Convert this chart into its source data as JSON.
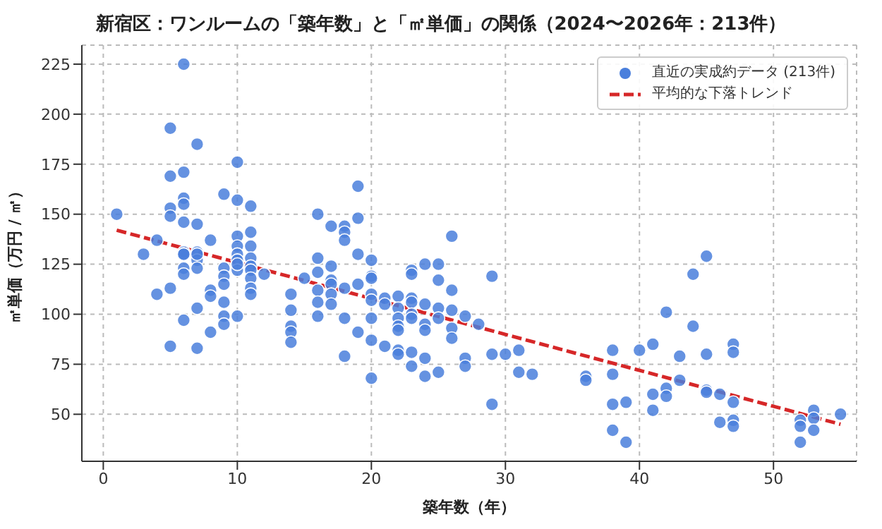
{
  "chart_data": {
    "type": "scatter",
    "title": "新宿区：ワンルームの「築年数」と「㎡単価」の関係（2024〜2026年：213件）",
    "xlabel": "築年数（年）",
    "ylabel": "㎡単価（万円 / ㎡）",
    "xlim": [
      -1.6,
      56.2
    ],
    "xticks": [
      0,
      10,
      20,
      30,
      40,
      50
    ],
    "ylim": [
      26.5,
      234.5
    ],
    "yticks": [
      50,
      75,
      100,
      125,
      150,
      175,
      200,
      225
    ],
    "grid": true,
    "legend": "top right",
    "marker": "circle",
    "series": [
      {
        "name": "直近の実成約データ (213件)",
        "type": "scatter",
        "color": "#4a7fdc",
        "x": [
          1,
          3,
          4,
          4,
          5,
          5,
          5,
          5,
          5,
          5,
          6,
          6,
          6,
          6,
          6,
          6,
          6,
          6,
          6,
          6,
          6,
          7,
          7,
          7,
          7,
          7,
          7,
          7,
          7,
          8,
          8,
          8,
          8,
          9,
          9,
          9,
          9,
          9,
          9,
          9,
          10,
          10,
          10,
          10,
          10,
          10,
          10,
          10,
          10,
          11,
          11,
          11,
          11,
          11,
          11,
          11,
          11,
          11,
          12,
          14,
          14,
          14,
          14,
          14,
          15,
          16,
          16,
          16,
          16,
          16,
          16,
          17,
          17,
          17,
          17,
          17,
          17,
          18,
          18,
          18,
          18,
          18,
          18,
          19,
          19,
          19,
          19,
          19,
          20,
          20,
          20,
          20,
          20,
          20,
          20,
          20,
          21,
          21,
          21,
          22,
          22,
          22,
          22,
          22,
          22,
          22,
          23,
          23,
          23,
          23,
          23,
          23,
          23,
          23,
          24,
          24,
          24,
          24,
          24,
          24,
          25,
          25,
          25,
          25,
          25,
          26,
          26,
          26,
          26,
          26,
          27,
          27,
          27,
          28,
          29,
          29,
          29,
          30,
          31,
          31,
          32,
          36,
          36,
          38,
          38,
          38,
          38,
          39,
          39,
          40,
          41,
          41,
          41,
          42,
          42,
          42,
          43,
          43,
          44,
          44,
          45,
          45,
          45,
          45,
          46,
          46,
          47,
          47,
          47,
          47,
          47,
          52,
          52,
          52,
          53,
          53,
          53,
          55
        ],
        "values": [
          150,
          130,
          137,
          110,
          193,
          169,
          153,
          149,
          113,
          84,
          225,
          171,
          158,
          155,
          146,
          131,
          130,
          123,
          120,
          97,
          130,
          185,
          145,
          131,
          127,
          123,
          103,
          83,
          130,
          137,
          112,
          109,
          91,
          160,
          123,
          119,
          115,
          106,
          99,
          95,
          176,
          157,
          139,
          134,
          130,
          127,
          122,
          99,
          125,
          154,
          141,
          134,
          128,
          124,
          122,
          118,
          113,
          110,
          120,
          110,
          102,
          94,
          91,
          86,
          118,
          150,
          128,
          121,
          112,
          106,
          99,
          144,
          124,
          117,
          115,
          110,
          105,
          144,
          141,
          137,
          113,
          98,
          79,
          164,
          148,
          130,
          115,
          91,
          127,
          119,
          118,
          110,
          107,
          98,
          87,
          68,
          108,
          105,
          84,
          109,
          103,
          98,
          94,
          92,
          82,
          80,
          122,
          120,
          108,
          106,
          100,
          98,
          81,
          74,
          125,
          105,
          95,
          92,
          78,
          69,
          125,
          117,
          103,
          98,
          71,
          139,
          112,
          102,
          93,
          88,
          99,
          78,
          74,
          95,
          119,
          80,
          55,
          80,
          82,
          71,
          70,
          69,
          67,
          82,
          70,
          55,
          42,
          56,
          36,
          82,
          85,
          60,
          52,
          101,
          63,
          59,
          79,
          67,
          120,
          94,
          129,
          80,
          62,
          61,
          60,
          46,
          85,
          81,
          56,
          47,
          44,
          47,
          44,
          36,
          52,
          48,
          42,
          50
        ]
      },
      {
        "name": "平均的な下落トレンド",
        "type": "line",
        "color": "#d62728",
        "line_style": "dashed",
        "marker": "none",
        "x": [
          1,
          55
        ],
        "values": [
          142,
          45
        ]
      }
    ]
  }
}
